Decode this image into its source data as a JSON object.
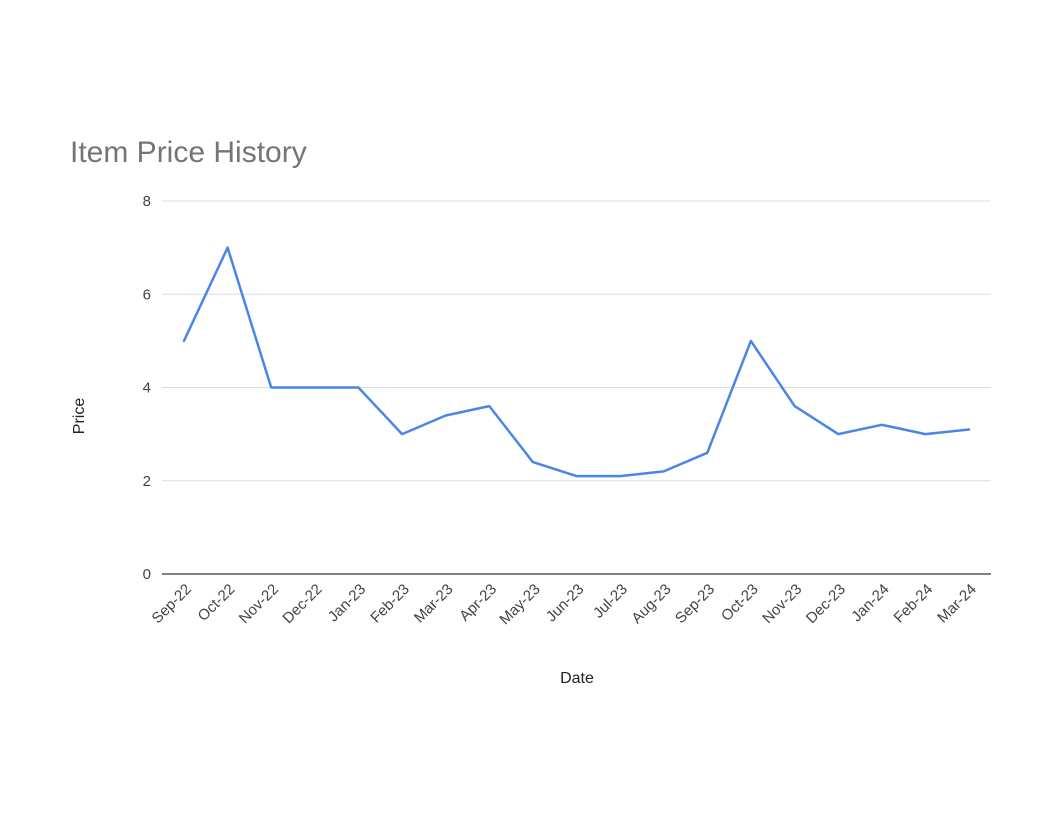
{
  "chart_data": {
    "type": "line",
    "title": "Item Price History",
    "xlabel": "Date",
    "ylabel": "Price",
    "ylim": [
      0,
      8
    ],
    "yticks": [
      0,
      2,
      4,
      6,
      8
    ],
    "grid": true,
    "legend": "none",
    "categories": [
      "Sep-22",
      "Oct-22",
      "Nov-22",
      "Dec-22",
      "Jan-23",
      "Feb-23",
      "Mar-23",
      "Apr-23",
      "May-23",
      "Jun-23",
      "Jul-23",
      "Aug-23",
      "Sep-23",
      "Oct-23",
      "Nov-23",
      "Dec-23",
      "Jan-24",
      "Feb-24",
      "Mar-24"
    ],
    "series": [
      {
        "color": "#4a86e8",
        "values": [
          5.0,
          7.0,
          4.0,
          4.0,
          4.0,
          3.0,
          3.4,
          3.6,
          2.4,
          2.1,
          2.1,
          2.2,
          2.6,
          5.0,
          3.6,
          3.0,
          3.2,
          3.0,
          3.1
        ]
      }
    ]
  }
}
